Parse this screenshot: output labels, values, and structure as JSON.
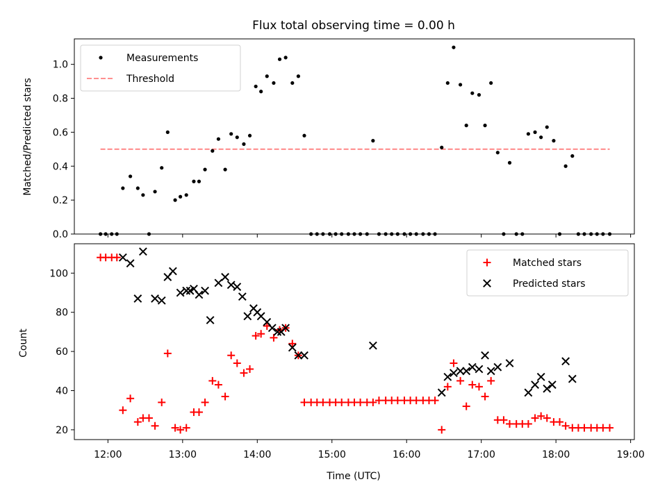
{
  "chart_data": [
    {
      "type": "scatter",
      "title": "Flux total observing time = 0.00 h",
      "xlabel": "",
      "ylabel": "Matched/Predicted stars",
      "ylim": [
        0,
        1.15
      ],
      "xlim": [
        11.55,
        19.05
      ],
      "yticks": [
        0.0,
        0.2,
        0.4,
        0.6,
        0.8,
        1.0
      ],
      "ytick_labels": [
        "0.0",
        "0.2",
        "0.4",
        "0.6",
        "0.8",
        "1.0"
      ],
      "legend": {
        "placement": "top-left",
        "entries": [
          "Measurements",
          "Threshold"
        ]
      },
      "grid": false,
      "threshold": {
        "name": "Threshold",
        "y": 0.5,
        "x": [
          11.9,
          18.72
        ],
        "color": "#ff8080"
      },
      "series": [
        {
          "name": "Measurements",
          "color": "#000000",
          "marker": "dot",
          "x": [
            11.9,
            11.97,
            12.05,
            12.12,
            12.2,
            12.3,
            12.4,
            12.47,
            12.55,
            12.63,
            12.72,
            12.8,
            12.9,
            12.97,
            13.05,
            13.15,
            13.22,
            13.3,
            13.4,
            13.48,
            13.57,
            13.65,
            13.73,
            13.82,
            13.9,
            13.98,
            14.05,
            14.13,
            14.22,
            14.3,
            14.38,
            14.47,
            14.55,
            14.63,
            14.72,
            14.8,
            14.88,
            14.97,
            15.05,
            15.13,
            15.22,
            15.3,
            15.38,
            15.47,
            15.55,
            15.63,
            15.72,
            15.8,
            15.88,
            15.97,
            16.05,
            16.13,
            16.22,
            16.3,
            16.38,
            16.47,
            16.55,
            16.63,
            16.72,
            16.8,
            16.88,
            16.97,
            17.05,
            17.13,
            17.22,
            17.3,
            17.38,
            17.47,
            17.55,
            17.63,
            17.72,
            17.8,
            17.88,
            17.97,
            18.05,
            18.13,
            18.22,
            18.3,
            18.38,
            18.47,
            18.55,
            18.63,
            18.72
          ],
          "y": [
            0.0,
            0.0,
            0.0,
            0.0,
            0.27,
            0.34,
            0.27,
            0.23,
            0.0,
            0.25,
            0.39,
            0.6,
            0.2,
            0.22,
            0.23,
            0.31,
            0.31,
            0.38,
            0.49,
            0.56,
            0.38,
            0.59,
            0.57,
            0.53,
            0.58,
            0.87,
            0.84,
            0.93,
            0.89,
            1.03,
            1.04,
            0.89,
            0.93,
            0.58,
            0.0,
            0.0,
            0.0,
            0.0,
            0.0,
            0.0,
            0.0,
            0.0,
            0.0,
            0.0,
            0.55,
            0.0,
            0.0,
            0.0,
            0.0,
            0.0,
            0.0,
            0.0,
            0.0,
            0.0,
            0.0,
            0.51,
            0.89,
            1.1,
            0.88,
            0.64,
            0.83,
            0.82,
            0.64,
            0.89,
            0.48,
            0.0,
            0.42,
            0.0,
            0.0,
            0.59,
            0.6,
            0.57,
            0.63,
            0.55,
            0.0,
            0.4,
            0.46,
            0.0,
            0.0,
            0.0,
            0.0,
            0.0,
            0.0
          ]
        }
      ]
    },
    {
      "type": "scatter",
      "title": "",
      "xlabel": "Time (UTC)",
      "ylabel": "Count",
      "ylim": [
        15,
        115
      ],
      "xlim": [
        11.55,
        19.05
      ],
      "yticks": [
        20,
        40,
        60,
        80,
        100
      ],
      "ytick_labels": [
        "20",
        "40",
        "60",
        "80",
        "100"
      ],
      "xticks": [
        12,
        13,
        14,
        15,
        16,
        17,
        18,
        19
      ],
      "xtick_labels": [
        "12:00",
        "13:00",
        "14:00",
        "15:00",
        "16:00",
        "17:00",
        "18:00",
        "19:00"
      ],
      "legend": {
        "placement": "top-right",
        "entries": [
          "Matched stars",
          "Predicted stars"
        ]
      },
      "grid": false,
      "series": [
        {
          "name": "Matched stars",
          "color": "#ff0000",
          "marker": "plus",
          "x": [
            11.9,
            11.97,
            12.05,
            12.12,
            12.2,
            12.3,
            12.4,
            12.47,
            12.55,
            12.63,
            12.72,
            12.8,
            12.9,
            12.97,
            13.05,
            13.15,
            13.22,
            13.3,
            13.4,
            13.48,
            13.57,
            13.65,
            13.73,
            13.82,
            13.9,
            13.98,
            14.05,
            14.13,
            14.22,
            14.3,
            14.38,
            14.47,
            14.55,
            14.63,
            14.72,
            14.8,
            14.88,
            14.97,
            15.05,
            15.13,
            15.22,
            15.3,
            15.38,
            15.47,
            15.55,
            15.63,
            15.72,
            15.8,
            15.88,
            15.97,
            16.05,
            16.13,
            16.22,
            16.3,
            16.38,
            16.47,
            16.55,
            16.63,
            16.72,
            16.8,
            16.88,
            16.97,
            17.05,
            17.13,
            17.22,
            17.3,
            17.38,
            17.47,
            17.55,
            17.63,
            17.72,
            17.8,
            17.88,
            17.97,
            18.05,
            18.13,
            18.22,
            18.3,
            18.38,
            18.47,
            18.55,
            18.63,
            18.72
          ],
          "y": [
            108,
            108,
            108,
            108,
            30,
            36,
            24,
            26,
            26,
            22,
            34,
            59,
            21,
            20,
            21,
            29,
            29,
            34,
            45,
            43,
            37,
            58,
            54,
            49,
            51,
            68,
            69,
            73,
            67,
            71,
            72,
            64,
            58,
            34,
            34,
            34,
            34,
            34,
            34,
            34,
            34,
            34,
            34,
            34,
            34,
            35,
            35,
            35,
            35,
            35,
            35,
            35,
            35,
            35,
            35,
            20,
            42,
            54,
            45,
            32,
            43,
            42,
            37,
            45,
            25,
            25,
            23,
            23,
            23,
            23,
            26,
            27,
            26,
            24,
            24,
            22,
            21,
            21,
            21,
            21,
            21,
            21,
            21
          ]
        },
        {
          "name": "Predicted stars",
          "color": "#000000",
          "marker": "x",
          "x": [
            12.2,
            12.3,
            12.4,
            12.47,
            12.63,
            12.72,
            12.8,
            12.87,
            12.97,
            13.05,
            13.1,
            13.15,
            13.22,
            13.3,
            13.37,
            13.48,
            13.57,
            13.65,
            13.73,
            13.8,
            13.87,
            13.95,
            14.0,
            14.05,
            14.13,
            14.2,
            14.27,
            14.32,
            14.38,
            14.47,
            14.55,
            14.63,
            15.55,
            16.47,
            16.55,
            16.63,
            16.72,
            16.8,
            16.88,
            16.97,
            17.05,
            17.13,
            17.22,
            17.38,
            17.63,
            17.72,
            17.8,
            17.88,
            17.95,
            18.13,
            18.22
          ],
          "y": [
            108,
            105,
            87,
            111,
            87,
            86,
            98,
            101,
            90,
            91,
            91,
            92,
            89,
            91,
            76,
            95,
            98,
            94,
            93,
            88,
            78,
            82,
            80,
            78,
            75,
            72,
            70,
            70,
            72,
            62,
            58,
            58,
            63,
            39,
            47,
            49,
            50,
            50,
            52,
            51,
            58,
            50,
            52,
            54,
            39,
            43,
            47,
            41,
            43,
            55,
            46
          ]
        }
      ]
    }
  ]
}
